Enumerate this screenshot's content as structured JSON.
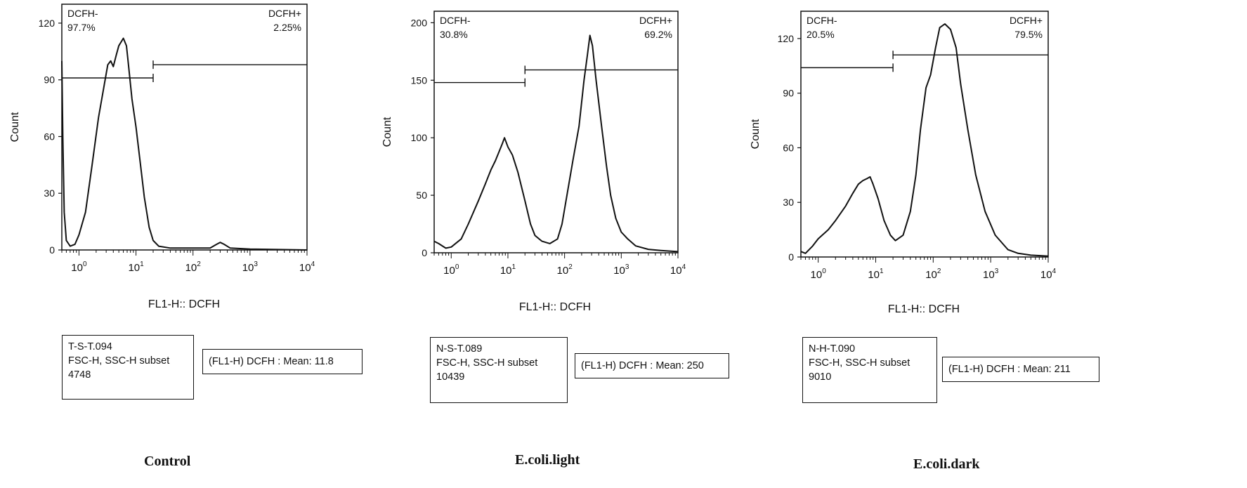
{
  "chart_data": [
    {
      "type": "area",
      "caption": "Control",
      "xlabel": "FL1-H:: DCFH",
      "ylabel": "Count",
      "xscale": "log",
      "xlim": [
        0.5,
        10000
      ],
      "ylim": [
        0,
        130
      ],
      "yticks": [
        "0",
        "30",
        "60",
        "90",
        "120"
      ],
      "xticks": [
        {
          "base": "10",
          "exp": "0"
        },
        {
          "base": "10",
          "exp": "1"
        },
        {
          "base": "10",
          "exp": "2"
        },
        {
          "base": "10",
          "exp": "3"
        },
        {
          "base": "10",
          "exp": "4"
        }
      ],
      "gate_negative": {
        "name": "DCFH-",
        "value": "97.7%",
        "x_from": 0.5,
        "x_to": 20,
        "level": 91
      },
      "gate_positive": {
        "name": "DCFH+",
        "value": "2.25%",
        "x_from": 20,
        "x_to": 10000,
        "level": 98
      },
      "sample": [
        "T-S-T.094",
        "FSC-H, SSC-H subset",
        "4748"
      ],
      "mean": "(FL1-H) DCFH : Mean: 11.8",
      "points": [
        [
          0.5,
          100
        ],
        [
          0.52,
          60
        ],
        [
          0.55,
          20
        ],
        [
          0.6,
          5
        ],
        [
          0.7,
          2
        ],
        [
          0.85,
          3
        ],
        [
          1,
          8
        ],
        [
          1.3,
          20
        ],
        [
          1.7,
          45
        ],
        [
          2.2,
          70
        ],
        [
          2.8,
          88
        ],
        [
          3.2,
          98
        ],
        [
          3.6,
          100
        ],
        [
          4,
          97
        ],
        [
          4.5,
          103
        ],
        [
          5,
          108
        ],
        [
          6,
          112
        ],
        [
          6.8,
          108
        ],
        [
          7.5,
          96
        ],
        [
          8.5,
          80
        ],
        [
          10,
          65
        ],
        [
          12,
          45
        ],
        [
          14,
          28
        ],
        [
          17,
          12
        ],
        [
          20,
          5
        ],
        [
          25,
          2
        ],
        [
          40,
          1
        ],
        [
          100,
          1
        ],
        [
          200,
          1
        ],
        [
          260,
          3
        ],
        [
          300,
          4
        ],
        [
          350,
          3
        ],
        [
          450,
          1
        ],
        [
          1000,
          0.5
        ],
        [
          10000,
          0
        ]
      ]
    },
    {
      "type": "area",
      "caption": "E.coli.light",
      "xlabel": "FL1-H:: DCFH",
      "ylabel": "Count",
      "xscale": "log",
      "xlim": [
        0.5,
        10000
      ],
      "ylim": [
        0,
        210
      ],
      "yticks": [
        "0",
        "50",
        "100",
        "150",
        "200"
      ],
      "xticks": [
        {
          "base": "10",
          "exp": "0"
        },
        {
          "base": "10",
          "exp": "1"
        },
        {
          "base": "10",
          "exp": "2"
        },
        {
          "base": "10",
          "exp": "3"
        },
        {
          "base": "10",
          "exp": "4"
        }
      ],
      "gate_negative": {
        "name": "DCFH-",
        "value": "30.8%",
        "x_from": 0.5,
        "x_to": 20,
        "level": 148
      },
      "gate_positive": {
        "name": "DCFH+",
        "value": "69.2%",
        "x_from": 20,
        "x_to": 10000,
        "level": 159
      },
      "sample": [
        "N-S-T.089",
        "FSC-H, SSC-H subset",
        "10439"
      ],
      "mean": "(FL1-H) DCFH : Mean: 250",
      "points": [
        [
          0.5,
          10
        ],
        [
          0.6,
          8
        ],
        [
          0.8,
          4
        ],
        [
          1,
          5
        ],
        [
          1.5,
          12
        ],
        [
          2,
          25
        ],
        [
          3,
          45
        ],
        [
          4,
          60
        ],
        [
          5,
          72
        ],
        [
          6,
          80
        ],
        [
          7,
          88
        ],
        [
          8,
          95
        ],
        [
          8.7,
          100
        ],
        [
          10,
          92
        ],
        [
          12,
          85
        ],
        [
          15,
          70
        ],
        [
          20,
          45
        ],
        [
          25,
          25
        ],
        [
          30,
          15
        ],
        [
          40,
          10
        ],
        [
          55,
          8
        ],
        [
          75,
          12
        ],
        [
          90,
          25
        ],
        [
          110,
          50
        ],
        [
          140,
          80
        ],
        [
          180,
          110
        ],
        [
          220,
          150
        ],
        [
          250,
          170
        ],
        [
          280,
          189
        ],
        [
          310,
          180
        ],
        [
          360,
          150
        ],
        [
          450,
          110
        ],
        [
          550,
          75
        ],
        [
          650,
          50
        ],
        [
          800,
          30
        ],
        [
          1000,
          18
        ],
        [
          1300,
          12
        ],
        [
          1800,
          6
        ],
        [
          3000,
          3
        ],
        [
          5000,
          2
        ],
        [
          10000,
          1
        ]
      ]
    },
    {
      "type": "area",
      "caption": "E.coli.dark",
      "xlabel": "FL1-H:: DCFH",
      "ylabel": "Count",
      "xscale": "log",
      "xlim": [
        0.5,
        10000
      ],
      "ylim": [
        0,
        135
      ],
      "yticks": [
        "0",
        "30",
        "60",
        "90",
        "120"
      ],
      "xticks": [
        {
          "base": "10",
          "exp": "0"
        },
        {
          "base": "10",
          "exp": "1"
        },
        {
          "base": "10",
          "exp": "2"
        },
        {
          "base": "10",
          "exp": "3"
        },
        {
          "base": "10",
          "exp": "4"
        }
      ],
      "gate_negative": {
        "name": "DCFH-",
        "value": "20.5%",
        "x_from": 0.5,
        "x_to": 20,
        "level": 104
      },
      "gate_positive": {
        "name": "DCFH+",
        "value": "79.5%",
        "x_from": 20,
        "x_to": 10000,
        "level": 111
      },
      "sample": [
        "N-H-T.090",
        "FSC-H, SSC-H subset",
        "9010"
      ],
      "mean": "(FL1-H) DCFH : Mean: 211",
      "points": [
        [
          0.5,
          3
        ],
        [
          0.6,
          2
        ],
        [
          0.8,
          6
        ],
        [
          1,
          10
        ],
        [
          1.5,
          15
        ],
        [
          2,
          20
        ],
        [
          3,
          28
        ],
        [
          4,
          35
        ],
        [
          5,
          40
        ],
        [
          6,
          42
        ],
        [
          7,
          43
        ],
        [
          8,
          44
        ],
        [
          9,
          40
        ],
        [
          11,
          32
        ],
        [
          14,
          20
        ],
        [
          18,
          12
        ],
        [
          22,
          9
        ],
        [
          30,
          12
        ],
        [
          40,
          25
        ],
        [
          50,
          45
        ],
        [
          60,
          70
        ],
        [
          75,
          93
        ],
        [
          90,
          100
        ],
        [
          110,
          115
        ],
        [
          130,
          126
        ],
        [
          160,
          128
        ],
        [
          200,
          125
        ],
        [
          250,
          115
        ],
        [
          300,
          95
        ],
        [
          400,
          70
        ],
        [
          550,
          45
        ],
        [
          800,
          25
        ],
        [
          1200,
          12
        ],
        [
          2000,
          4
        ],
        [
          3000,
          2
        ],
        [
          5000,
          1
        ],
        [
          10000,
          0.5
        ]
      ]
    }
  ]
}
